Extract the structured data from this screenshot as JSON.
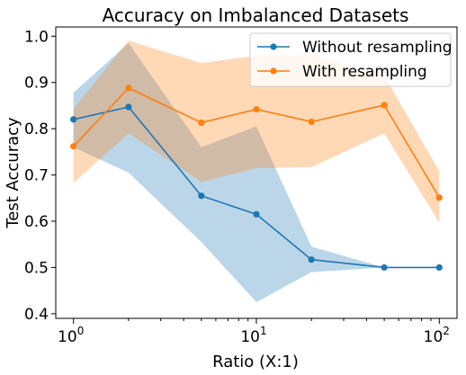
{
  "chart_data": {
    "type": "line",
    "title": "Accuracy on Imbalanced Datasets",
    "xlabel": "Ratio (X:1)",
    "ylabel": "Test Accuracy",
    "xscale": "log",
    "xlim": [
      0.8,
      125
    ],
    "ylim": [
      0.39,
      1.02
    ],
    "x_ticks": [
      {
        "value": 1,
        "base": "10",
        "exp": "0"
      },
      {
        "value": 10,
        "base": "10",
        "exp": "1"
      },
      {
        "value": 100,
        "base": "10",
        "exp": "2"
      }
    ],
    "y_ticks": [
      "0.4",
      "0.5",
      "0.6",
      "0.7",
      "0.8",
      "0.9",
      "1.0"
    ],
    "x": [
      1,
      2,
      5,
      10,
      20,
      50,
      100
    ],
    "series": [
      {
        "name": "Without resampling",
        "color": "#1f77b4",
        "values": [
          0.82,
          0.847,
          0.655,
          0.615,
          0.517,
          0.5,
          0.5
        ],
        "lower": [
          0.76,
          0.705,
          0.555,
          0.425,
          0.49,
          0.5,
          0.5
        ],
        "upper": [
          0.878,
          0.985,
          0.76,
          0.805,
          0.545,
          0.5,
          0.5
        ]
      },
      {
        "name": "With resampling",
        "color": "#ff7f0e",
        "values": [
          0.762,
          0.888,
          0.813,
          0.842,
          0.815,
          0.851,
          0.651
        ],
        "lower": [
          0.683,
          0.79,
          0.685,
          0.715,
          0.717,
          0.79,
          0.597
        ],
        "upper": [
          0.843,
          0.99,
          0.942,
          0.958,
          0.96,
          0.915,
          0.708
        ]
      }
    ],
    "legend_position": "top-right",
    "grid": false
  }
}
